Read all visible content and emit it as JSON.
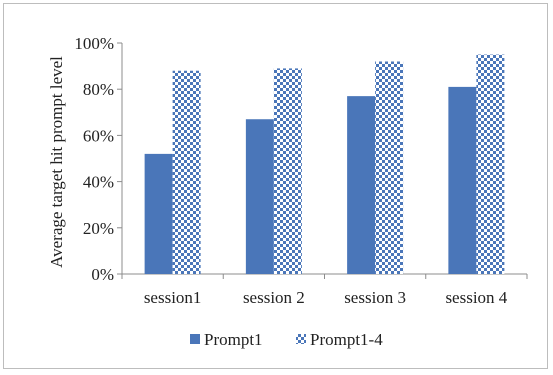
{
  "chart_data": {
    "type": "bar",
    "title": "",
    "xlabel": "",
    "ylabel": "Average target hit prompt level",
    "categories": [
      "session1",
      "session 2",
      "session 3",
      "session 4"
    ],
    "series": [
      {
        "name": "Prompt1",
        "values": [
          52,
          67,
          77,
          81
        ],
        "color": "#4a76b9",
        "pattern": "solid"
      },
      {
        "name": "Prompt1-4",
        "values": [
          88,
          89,
          92,
          95
        ],
        "color": "#4a76b9",
        "pattern": "checkerboard"
      }
    ],
    "ylim": [
      0,
      100
    ],
    "yticks": [
      "0%",
      "20%",
      "40%",
      "60%",
      "80%",
      "100%"
    ],
    "grid": false,
    "legend": "bottom"
  }
}
